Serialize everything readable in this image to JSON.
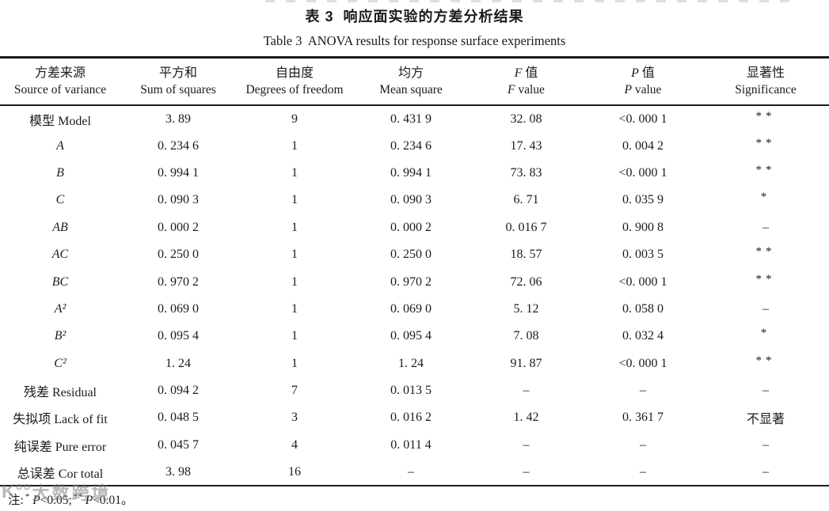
{
  "title": {
    "zh": "表 3  响应面实验的方差分析结果",
    "en": "Table 3  ANOVA results for response surface experiments"
  },
  "table": {
    "columns": [
      {
        "id": "source",
        "zh_italic": "",
        "zh": "方差来源",
        "en_italic": "",
        "en": "Source of variance"
      },
      {
        "id": "ss",
        "zh_italic": "",
        "zh": "平方和",
        "en_italic": "",
        "en": "Sum of squares"
      },
      {
        "id": "df",
        "zh_italic": "",
        "zh": "自由度",
        "en_italic": "",
        "en": "Degrees of freedom"
      },
      {
        "id": "ms",
        "zh_italic": "",
        "zh": "均方",
        "en_italic": "",
        "en": "Mean square"
      },
      {
        "id": "f",
        "zh_italic": "F",
        "zh": " 值",
        "en_italic": "F",
        "en": " value"
      },
      {
        "id": "p",
        "zh_italic": "P",
        "zh": " 值",
        "en_italic": "P",
        "en": " value"
      },
      {
        "id": "sig",
        "zh_italic": "",
        "zh": "显著性",
        "en_italic": "",
        "en": "Significance"
      }
    ],
    "rows": [
      {
        "source": "模型 Model",
        "italic_source": false,
        "ss": "3. 89",
        "df": "9",
        "ms": "0. 431 9",
        "f": "32. 08",
        "p": "<0. 000 1",
        "sig": "**",
        "sig_style": "stars"
      },
      {
        "source": "A",
        "italic_source": true,
        "ss": "0. 234 6",
        "df": "1",
        "ms": "0. 234 6",
        "f": "17. 43",
        "p": "0. 004 2",
        "sig": "**",
        "sig_style": "stars"
      },
      {
        "source": "B",
        "italic_source": true,
        "ss": "0. 994 1",
        "df": "1",
        "ms": "0. 994 1",
        "f": "73. 83",
        "p": "<0. 000 1",
        "sig": "**",
        "sig_style": "stars"
      },
      {
        "source": "C",
        "italic_source": true,
        "ss": "0. 090 3",
        "df": "1",
        "ms": "0. 090 3",
        "f": "6. 71",
        "p": "0. 035 9",
        "sig": "*",
        "sig_style": "stars"
      },
      {
        "source": "AB",
        "italic_source": true,
        "ss": "0. 000 2",
        "df": "1",
        "ms": "0. 000 2",
        "f": "0. 016 7",
        "p": "0. 900 8",
        "sig": "–",
        "sig_style": "plain"
      },
      {
        "source": "AC",
        "italic_source": true,
        "ss": "0. 250 0",
        "df": "1",
        "ms": "0. 250 0",
        "f": "18. 57",
        "p": "0. 003 5",
        "sig": "**",
        "sig_style": "stars"
      },
      {
        "source": "BC",
        "italic_source": true,
        "ss": "0. 970 2",
        "df": "1",
        "ms": "0. 970 2",
        "f": "72. 06",
        "p": "<0. 000 1",
        "sig": "**",
        "sig_style": "stars"
      },
      {
        "source": "A²",
        "italic_source": true,
        "ss": "0. 069 0",
        "df": "1",
        "ms": "0. 069 0",
        "f": "5. 12",
        "p": "0. 058 0",
        "sig": "–",
        "sig_style": "plain"
      },
      {
        "source": "B²",
        "italic_source": true,
        "ss": "0. 095 4",
        "df": "1",
        "ms": "0. 095 4",
        "f": "7. 08",
        "p": "0. 032 4",
        "sig": "*",
        "sig_style": "stars"
      },
      {
        "source": "C²",
        "italic_source": true,
        "ss": "1. 24",
        "df": "1",
        "ms": "1. 24",
        "f": "91. 87",
        "p": "<0. 000 1",
        "sig": "**",
        "sig_style": "stars"
      },
      {
        "source": "残差 Residual",
        "italic_source": false,
        "ss": "0. 094 2",
        "df": "7",
        "ms": "0. 013 5",
        "f": "–",
        "p": "–",
        "sig": "–",
        "sig_style": "plain"
      },
      {
        "source": "失拟项 Lack of fit",
        "italic_source": false,
        "ss": "0. 048 5",
        "df": "3",
        "ms": "0. 016 2",
        "f": "1. 42",
        "p": "0. 361 7",
        "sig": "不显著",
        "sig_style": "plain"
      },
      {
        "source": "纯误差 Pure error",
        "italic_source": false,
        "ss": "0. 045 7",
        "df": "4",
        "ms": "0. 011 4",
        "f": "–",
        "p": "–",
        "sig": "–",
        "sig_style": "plain"
      },
      {
        "source": "总误差 Cor total",
        "italic_source": false,
        "ss": "3. 98",
        "df": "16",
        "ms": "–",
        "f": "–",
        "p": "–",
        "sig": "–",
        "sig_style": "plain"
      }
    ]
  },
  "note": {
    "label": "注:",
    "sig1_mark": "*",
    "p1": "P",
    "lt1": "<0.05;",
    "sig2_mark": "**",
    "p2": "P",
    "lt2": "<0.01。"
  },
  "watermark": {
    "logo": "K°°",
    "text": "大数跨境"
  }
}
